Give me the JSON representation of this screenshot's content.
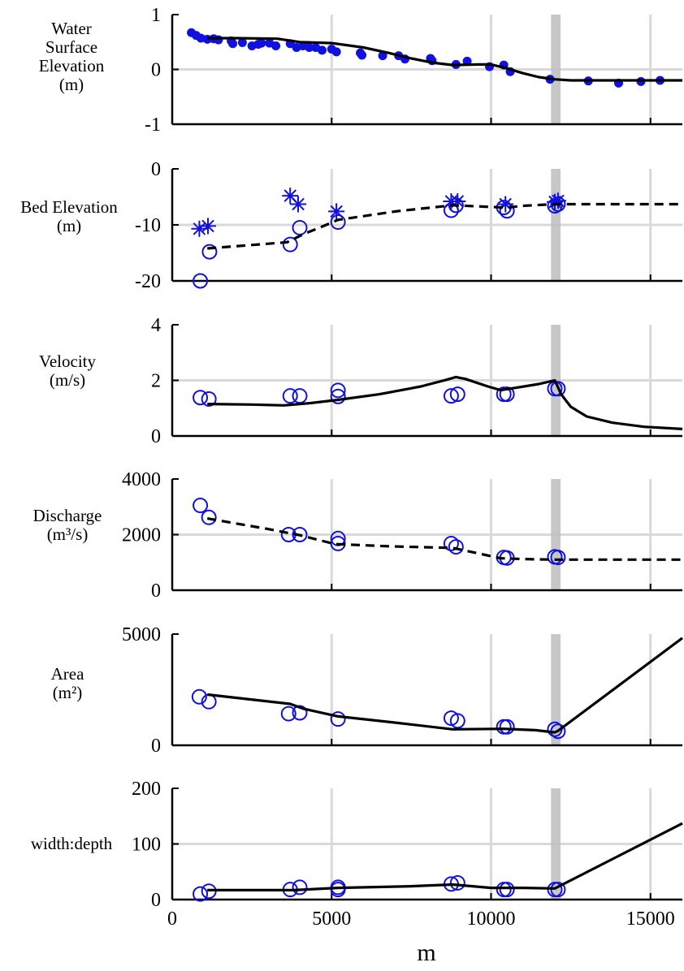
{
  "colors": {
    "observed": "#1010e0",
    "model": "#000000",
    "grid": "#d9d9d9",
    "marker_band": "#bdbdbd"
  },
  "chart_data": [
    {
      "type": "scatter",
      "ylabel_lines": [
        "Water",
        "Surface",
        "Elevation",
        "(m)"
      ],
      "ylim": [
        -1,
        1
      ],
      "yticks": [
        "-1",
        "0",
        "1"
      ],
      "xlim": [
        0,
        16000
      ],
      "series": [
        {
          "marker": "filled-dot",
          "points": [
            [
              600,
              0.67
            ],
            [
              750,
              0.62
            ],
            [
              900,
              0.57
            ],
            [
              1100,
              0.55
            ],
            [
              1300,
              0.56
            ],
            [
              1450,
              0.54
            ],
            [
              1850,
              0.52
            ],
            [
              1900,
              0.47
            ],
            [
              2200,
              0.49
            ],
            [
              2500,
              0.43
            ],
            [
              2700,
              0.46
            ],
            [
              2800,
              0.48
            ],
            [
              3050,
              0.48
            ],
            [
              3250,
              0.43
            ],
            [
              3700,
              0.47
            ],
            [
              3900,
              0.4
            ],
            [
              4100,
              0.43
            ],
            [
              4300,
              0.4
            ],
            [
              4500,
              0.4
            ],
            [
              4700,
              0.35
            ],
            [
              5000,
              0.37
            ],
            [
              5150,
              0.32
            ],
            [
              5900,
              0.3
            ],
            [
              5950,
              0.26
            ],
            [
              6600,
              0.25
            ],
            [
              7100,
              0.25
            ],
            [
              7300,
              0.19
            ],
            [
              8100,
              0.2
            ],
            [
              8150,
              0.16
            ],
            [
              8900,
              0.09
            ],
            [
              9250,
              0.15
            ],
            [
              9950,
              0.05
            ],
            [
              10400,
              0.08
            ],
            [
              10600,
              -0.04
            ],
            [
              11850,
              -0.18
            ],
            [
              13050,
              -0.21
            ],
            [
              14000,
              -0.25
            ],
            [
              14700,
              -0.22
            ],
            [
              15300,
              -0.2
            ]
          ]
        },
        {
          "line": "solid",
          "points": [
            [
              1100,
              0.57
            ],
            [
              2000,
              0.57
            ],
            [
              3300,
              0.56
            ],
            [
              4000,
              0.5
            ],
            [
              5000,
              0.48
            ],
            [
              6000,
              0.4
            ],
            [
              6800,
              0.3
            ],
            [
              7500,
              0.2
            ],
            [
              8200,
              0.12
            ],
            [
              8800,
              0.08
            ],
            [
              9600,
              0.09
            ],
            [
              10000,
              0.09
            ],
            [
              10500,
              0.02
            ],
            [
              11000,
              -0.07
            ],
            [
              11500,
              -0.14
            ],
            [
              12000,
              -0.18
            ],
            [
              12500,
              -0.2
            ],
            [
              16000,
              -0.2
            ]
          ]
        }
      ]
    },
    {
      "type": "scatter",
      "ylabel_lines": [
        "Bed Elevation",
        "(m)"
      ],
      "ylim": [
        -20,
        0
      ],
      "yticks": [
        "-20",
        "-10",
        "0"
      ],
      "xlim": [
        0,
        16000
      ],
      "series": [
        {
          "marker": "asterisk",
          "points": [
            [
              850,
              -10.7
            ],
            [
              1120,
              -10.2
            ],
            [
              3700,
              -4.8
            ],
            [
              3950,
              -6.3
            ],
            [
              5150,
              -7.6
            ],
            [
              8750,
              -5.8
            ],
            [
              8950,
              -5.8
            ],
            [
              10450,
              -6.3
            ],
            [
              12000,
              -5.9
            ],
            [
              12100,
              -5.7
            ]
          ]
        },
        {
          "marker": "open-circle",
          "points": [
            [
              880,
              -20.0
            ],
            [
              1170,
              -14.8
            ],
            [
              3700,
              -13.5
            ],
            [
              4000,
              -10.5
            ],
            [
              5200,
              -9.5
            ],
            [
              8750,
              -7.4
            ],
            [
              8900,
              -6.5
            ],
            [
              10400,
              -6.9
            ],
            [
              10500,
              -7.5
            ],
            [
              12000,
              -6.6
            ],
            [
              12100,
              -6.3
            ]
          ]
        },
        {
          "line": "dashed",
          "points": [
            [
              1100,
              -14.2
            ],
            [
              3600,
              -13.1
            ],
            [
              4100,
              -11.7
            ],
            [
              4700,
              -10.3
            ],
            [
              5200,
              -9.1
            ],
            [
              7000,
              -7.6
            ],
            [
              8800,
              -6.5
            ],
            [
              10000,
              -6.8
            ],
            [
              10500,
              -6.9
            ],
            [
              11000,
              -6.6
            ],
            [
              12000,
              -6.3
            ],
            [
              16000,
              -6.3
            ]
          ]
        }
      ]
    },
    {
      "type": "scatter",
      "ylabel_lines": [
        "Velocity",
        "(m/s)"
      ],
      "ylim": [
        0,
        4
      ],
      "yticks": [
        "0",
        "2",
        "4"
      ],
      "xlim": [
        0,
        16000
      ],
      "series": [
        {
          "marker": "open-circle",
          "points": [
            [
              880,
              1.38
            ],
            [
              1150,
              1.33
            ],
            [
              3700,
              1.44
            ],
            [
              4000,
              1.44
            ],
            [
              5200,
              1.64
            ],
            [
              5200,
              1.42
            ],
            [
              8750,
              1.44
            ],
            [
              8950,
              1.5
            ],
            [
              10400,
              1.5
            ],
            [
              10500,
              1.5
            ],
            [
              12000,
              1.7
            ],
            [
              12100,
              1.7
            ]
          ]
        },
        {
          "line": "solid",
          "points": [
            [
              1100,
              1.15
            ],
            [
              2500,
              1.13
            ],
            [
              3500,
              1.1
            ],
            [
              4300,
              1.18
            ],
            [
              5200,
              1.3
            ],
            [
              6500,
              1.5
            ],
            [
              7800,
              1.78
            ],
            [
              8600,
              2.02
            ],
            [
              8900,
              2.12
            ],
            [
              9200,
              2.05
            ],
            [
              9900,
              1.78
            ],
            [
              10300,
              1.65
            ],
            [
              10700,
              1.72
            ],
            [
              11500,
              1.87
            ],
            [
              12000,
              2.0
            ],
            [
              12200,
              1.5
            ],
            [
              12500,
              1.05
            ],
            [
              13000,
              0.7
            ],
            [
              13800,
              0.48
            ],
            [
              14800,
              0.33
            ],
            [
              16000,
              0.25
            ]
          ]
        }
      ]
    },
    {
      "type": "scatter",
      "ylabel_lines": [
        "Discharge",
        "(m³/s)"
      ],
      "ylim": [
        0,
        4000
      ],
      "yticks": [
        "0",
        "2000",
        "4000"
      ],
      "xlim": [
        0,
        16000
      ],
      "series": [
        {
          "marker": "open-circle",
          "points": [
            [
              880,
              3050
            ],
            [
              1150,
              2620
            ],
            [
              3650,
              2000
            ],
            [
              4000,
              2000
            ],
            [
              5200,
              1860
            ],
            [
              5200,
              1680
            ],
            [
              8750,
              1680
            ],
            [
              8900,
              1560
            ],
            [
              10400,
              1180
            ],
            [
              10500,
              1160
            ],
            [
              12000,
              1200
            ],
            [
              12100,
              1180
            ]
          ]
        },
        {
          "line": "dashed",
          "points": [
            [
              1100,
              2580
            ],
            [
              3000,
              2200
            ],
            [
              4000,
              1980
            ],
            [
              5100,
              1660
            ],
            [
              6800,
              1580
            ],
            [
              8800,
              1520
            ],
            [
              10300,
              1150
            ],
            [
              11000,
              1120
            ],
            [
              12000,
              1100
            ],
            [
              16000,
              1100
            ]
          ]
        }
      ]
    },
    {
      "type": "scatter",
      "ylabel_lines": [
        "Area",
        "(m²)"
      ],
      "ylim": [
        0,
        5000
      ],
      "yticks": [
        "0",
        "5000"
      ],
      "xlim": [
        0,
        16000
      ],
      "series": [
        {
          "marker": "open-circle",
          "points": [
            [
              850,
              2180
            ],
            [
              1150,
              1960
            ],
            [
              3650,
              1420
            ],
            [
              4000,
              1460
            ],
            [
              5200,
              1180
            ],
            [
              8750,
              1220
            ],
            [
              8950,
              1100
            ],
            [
              10400,
              830
            ],
            [
              10500,
              830
            ],
            [
              12000,
              720
            ],
            [
              12100,
              630
            ]
          ]
        },
        {
          "line": "solid",
          "points": [
            [
              1100,
              2280
            ],
            [
              3700,
              1860
            ],
            [
              4100,
              1650
            ],
            [
              5200,
              1300
            ],
            [
              7000,
              1020
            ],
            [
              8800,
              720
            ],
            [
              10400,
              740
            ],
            [
              11400,
              680
            ],
            [
              12000,
              580
            ],
            [
              12100,
              650
            ],
            [
              16000,
              4820
            ]
          ]
        }
      ]
    },
    {
      "type": "scatter",
      "ylabel_lines": [
        "width:depth"
      ],
      "ylim": [
        0,
        200
      ],
      "yticks": [
        "0",
        "100",
        "200"
      ],
      "xlim": [
        0,
        16000
      ],
      "xticks": [
        "0",
        "5000",
        "10000",
        "15000"
      ],
      "xlabel": "m",
      "series": [
        {
          "marker": "open-circle",
          "points": [
            [
              880,
              10
            ],
            [
              1150,
              15
            ],
            [
              3700,
              18
            ],
            [
              4000,
              22
            ],
            [
              5200,
              22
            ],
            [
              5200,
              18
            ],
            [
              8750,
              28
            ],
            [
              8950,
              30
            ],
            [
              10400,
              18
            ],
            [
              10500,
              18
            ],
            [
              12000,
              18
            ],
            [
              12100,
              18
            ]
          ]
        },
        {
          "line": "solid",
          "points": [
            [
              1100,
              17
            ],
            [
              3800,
              17
            ],
            [
              5200,
              21
            ],
            [
              7500,
              24
            ],
            [
              8800,
              27
            ],
            [
              9200,
              25
            ],
            [
              10000,
              21
            ],
            [
              11000,
              21
            ],
            [
              12000,
              20
            ],
            [
              16000,
              137
            ]
          ]
        }
      ]
    }
  ]
}
